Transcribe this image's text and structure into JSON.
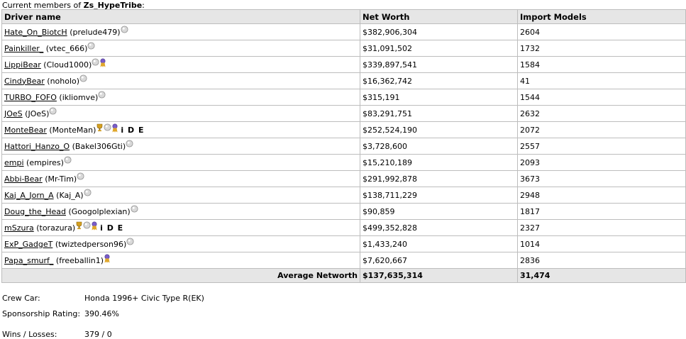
{
  "caption": {
    "prefix": "Current members of ",
    "crew": "Zs_HypeTribe",
    "suffix": ":"
  },
  "table": {
    "headers": [
      "Driver name",
      "Net Worth",
      "Import Models"
    ],
    "rows": [
      {
        "name": "Hate_On_BiotcH",
        "user": "(prelude479)",
        "net": "$382,906,304",
        "imports": "2604",
        "icons": [
          "circle"
        ],
        "letters": ""
      },
      {
        "name": "Painkiller_",
        "user": "(vtec_666)",
        "net": "$31,091,502",
        "imports": "1732",
        "icons": [
          "circle"
        ],
        "letters": ""
      },
      {
        "name": "LippiBear",
        "user": "(Cloud1000)",
        "net": "$339,897,541",
        "imports": "1584",
        "icons": [
          "circle",
          "ribbon"
        ],
        "letters": ""
      },
      {
        "name": "CindyBear",
        "user": "(noholo)",
        "net": "$16,362,742",
        "imports": "41",
        "icons": [
          "circle"
        ],
        "letters": ""
      },
      {
        "name": "TURBO_FOFO",
        "user": "(ikliomve)",
        "net": "$315,191",
        "imports": "1544",
        "icons": [
          "circle"
        ],
        "letters": ""
      },
      {
        "name": "JOeS",
        "user": "(JOeS)",
        "net": "$83,291,751",
        "imports": "2632",
        "icons": [
          "circle"
        ],
        "letters": ""
      },
      {
        "name": "MonteBear",
        "user": "(MonteMan)",
        "net": "$252,524,190",
        "imports": "2072",
        "icons": [
          "trophy",
          "circle",
          "ribbon"
        ],
        "letters": "i D E"
      },
      {
        "name": "Hattori_Hanzo_O",
        "user": "(Bakel306Gti)",
        "net": "$3,728,600",
        "imports": "2557",
        "icons": [
          "circle"
        ],
        "letters": ""
      },
      {
        "name": "empi",
        "user": "(empires)",
        "net": "$15,210,189",
        "imports": "2093",
        "icons": [
          "circle"
        ],
        "letters": ""
      },
      {
        "name": "Abbi-Bear",
        "user": "(Mr-Tim)",
        "net": "$291,992,878",
        "imports": "3673",
        "icons": [
          "circle"
        ],
        "letters": ""
      },
      {
        "name": "Kaj_A_Jorn_A",
        "user": "(Kaj_A)",
        "net": "$138,711,229",
        "imports": "2948",
        "icons": [
          "circle"
        ],
        "letters": ""
      },
      {
        "name": "Doug_the_Head",
        "user": "(Googolplexian)",
        "net": "$90,859",
        "imports": "1817",
        "icons": [
          "circle"
        ],
        "letters": ""
      },
      {
        "name": "mSzura",
        "user": "(torazura)",
        "net": "$499,352,828",
        "imports": "2327",
        "icons": [
          "trophy",
          "circle",
          "ribbon"
        ],
        "letters": "i D E"
      },
      {
        "name": "ExP_GadgeT",
        "user": "(twiztedperson96)",
        "net": "$1,433,240",
        "imports": "1014",
        "icons": [
          "circle"
        ],
        "letters": ""
      },
      {
        "name": "Papa_smurf_",
        "user": "(freeballin1)",
        "net": "$7,620,667",
        "imports": "2836",
        "icons": [
          "ribbon"
        ],
        "letters": ""
      }
    ],
    "average": {
      "label": "Average Networth",
      "net": "$137,635,314",
      "imports": "31,474"
    }
  },
  "info": [
    {
      "key": "Crew Car:",
      "value": "Honda 1996+ Civic Type R(EK)"
    },
    {
      "key": "Sponsorship Rating:",
      "value": "390.46%"
    },
    {
      "key": "Wins / Losses:",
      "value": "379 / 0"
    }
  ],
  "icon_colors": {
    "circle": "#d9d9d9",
    "ribbon": "#7a5cc8",
    "trophy": "#d4a020"
  }
}
